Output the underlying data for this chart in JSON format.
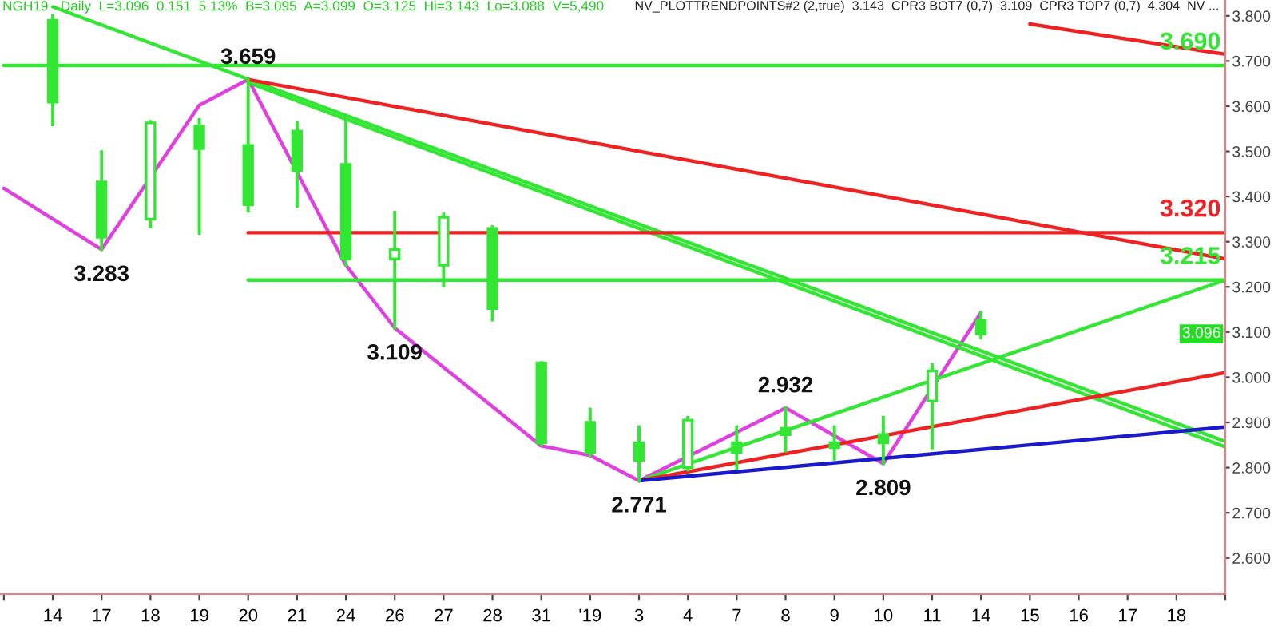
{
  "chart_data": {
    "type": "candlestick",
    "title": "NGH19 - Daily  L=3.096  0.151  5.13%  B=3.095  A=3.099  O=3.125  Hi=3.143  Lo=3.088  V=5,490",
    "subtitle": "NV_PLOTTRENDPOINTS#2 (2,true)  3.143  CPR3 BOT7 (0,7)  3.109  CPR3 TOP7 (0,7)  4.304  NV ...",
    "categories": [
      null,
      "14",
      "17",
      "18",
      "19",
      "20",
      "21",
      "24",
      "26",
      "27",
      "28",
      "31",
      "'19",
      "3",
      "4",
      "7",
      "8",
      "9",
      "10",
      "11",
      "14",
      "15",
      "16",
      "17",
      "18",
      null
    ],
    "color": "#33e633",
    "ohlc": [
      null,
      [
        3.79,
        3.8,
        3.559,
        3.609
      ],
      [
        3.432,
        3.499,
        3.283,
        3.31
      ],
      [
        3.35,
        3.566,
        3.333,
        3.563
      ],
      [
        3.556,
        3.57,
        3.319,
        3.506
      ],
      [
        3.513,
        3.659,
        3.368,
        3.382
      ],
      [
        3.545,
        3.563,
        3.379,
        3.457
      ],
      [
        3.471,
        3.566,
        3.248,
        3.262
      ],
      [
        3.262,
        3.365,
        3.109,
        3.283
      ],
      [
        3.248,
        3.361,
        3.202,
        3.354
      ],
      [
        3.329,
        3.333,
        3.127,
        3.152
      ],
      [
        3.032,
        3.032,
        2.851,
        2.855
      ],
      [
        2.9,
        2.929,
        2.827,
        2.834
      ],
      [
        2.855,
        2.89,
        2.771,
        2.816
      ],
      [
        2.8,
        2.911,
        2.795,
        2.905
      ],
      [
        2.855,
        2.89,
        2.798,
        2.834
      ],
      [
        2.887,
        2.932,
        2.837,
        2.873
      ],
      [
        2.855,
        2.89,
        2.819,
        2.844
      ],
      [
        2.873,
        2.911,
        2.809,
        2.855
      ],
      [
        2.947,
        3.028,
        2.844,
        3.014
      ],
      [
        3.125,
        3.143,
        3.088,
        3.096
      ],
      null,
      null,
      null,
      null,
      null
    ],
    "series": [
      {
        "type": "line",
        "color": "#e040e0",
        "values": [
          3.418,
          null,
          3.283,
          null,
          3.602,
          3.659,
          null,
          3.248,
          3.109,
          null,
          null,
          2.848,
          2.827,
          2.771,
          null,
          null,
          2.932,
          null,
          2.809,
          null,
          3.143,
          null,
          null,
          null,
          null,
          null
        ]
      },
      {
        "type": "line",
        "color": "#33e633",
        "values": [
          3.69,
          null,
          null,
          null,
          null,
          null,
          null,
          null,
          null,
          null,
          null,
          null,
          null,
          null,
          null,
          null,
          null,
          null,
          null,
          null,
          null,
          null,
          null,
          null,
          null,
          3.69
        ]
      },
      {
        "type": "line",
        "color": "#33e633",
        "values": [
          null,
          3.82,
          null,
          null,
          null,
          null,
          null,
          null,
          null,
          null,
          null,
          null,
          null,
          null,
          null,
          null,
          null,
          null,
          null,
          null,
          null,
          null,
          null,
          null,
          null,
          2.858
        ]
      },
      {
        "type": "line",
        "color": "#33e633",
        "values": [
          null,
          null,
          null,
          null,
          null,
          3.652,
          null,
          null,
          null,
          null,
          null,
          null,
          null,
          null,
          null,
          null,
          null,
          null,
          null,
          null,
          null,
          null,
          null,
          null,
          null,
          2.846
        ]
      },
      {
        "type": "line",
        "color": "#ee2222",
        "values": [
          null,
          null,
          null,
          null,
          null,
          3.659,
          null,
          null,
          null,
          null,
          null,
          null,
          null,
          null,
          null,
          null,
          null,
          null,
          null,
          null,
          null,
          null,
          null,
          null,
          null,
          3.262
        ]
      },
      {
        "type": "line",
        "color": "#ee2222",
        "values": [
          null,
          null,
          null,
          null,
          null,
          null,
          null,
          null,
          null,
          null,
          null,
          null,
          null,
          null,
          null,
          null,
          null,
          null,
          null,
          null,
          null,
          3.782,
          null,
          null,
          null,
          3.715
        ]
      },
      {
        "type": "line",
        "color": "#ee2222",
        "values": [
          null,
          null,
          null,
          null,
          null,
          3.32,
          null,
          null,
          null,
          null,
          null,
          null,
          null,
          null,
          null,
          null,
          null,
          null,
          null,
          null,
          null,
          null,
          null,
          null,
          null,
          3.32
        ]
      },
      {
        "type": "line",
        "color": "#33e633",
        "values": [
          null,
          null,
          null,
          null,
          null,
          3.215,
          null,
          null,
          null,
          null,
          null,
          null,
          null,
          null,
          null,
          null,
          null,
          null,
          null,
          null,
          null,
          null,
          null,
          null,
          null,
          3.215
        ]
      },
      {
        "type": "line",
        "color": "#33e633",
        "values": [
          null,
          null,
          null,
          null,
          null,
          null,
          null,
          null,
          null,
          null,
          null,
          null,
          null,
          2.771,
          null,
          null,
          null,
          null,
          null,
          null,
          null,
          null,
          null,
          null,
          null,
          3.215
        ]
      },
      {
        "type": "line",
        "color": "#ee2222",
        "values": [
          null,
          null,
          null,
          null,
          null,
          null,
          null,
          null,
          null,
          null,
          null,
          null,
          null,
          2.771,
          null,
          null,
          null,
          null,
          null,
          null,
          null,
          null,
          null,
          null,
          null,
          3.01
        ]
      },
      {
        "type": "line",
        "color": "#1a1acc",
        "values": [
          null,
          null,
          null,
          null,
          null,
          null,
          null,
          null,
          null,
          null,
          null,
          null,
          null,
          2.771,
          null,
          null,
          null,
          null,
          null,
          null,
          null,
          null,
          null,
          null,
          null,
          2.89
        ]
      }
    ],
    "ylim": [
      2.52,
      3.835
    ],
    "yticks": [
      {
        "value": 2.6,
        "label": "2.600"
      },
      {
        "value": 2.7,
        "label": "2.700"
      },
      {
        "value": 2.8,
        "label": "2.800"
      },
      {
        "value": 2.9,
        "label": "2.900"
      },
      {
        "value": 3.0,
        "label": "3.000"
      },
      {
        "value": 3.1,
        "label": "3.100"
      },
      {
        "value": 3.2,
        "label": "3.200"
      },
      {
        "value": 3.3,
        "label": "3.300"
      },
      {
        "value": 3.4,
        "label": "3.400"
      },
      {
        "value": 3.5,
        "label": "3.500"
      },
      {
        "value": 3.6,
        "label": "3.600"
      },
      {
        "value": 3.7,
        "label": "3.700"
      },
      {
        "value": 3.8,
        "label": "3.800"
      }
    ],
    "annotations": [
      {
        "text": "3.659",
        "y": 3.659
      },
      {
        "text": "3.283",
        "y": 3.283
      },
      {
        "text": "3.109",
        "y": 3.109
      },
      {
        "text": "2.771",
        "y": 2.771
      },
      {
        "text": "2.932",
        "y": 2.932
      },
      {
        "text": "2.809",
        "y": 2.809
      },
      "3.690",
      "3.320",
      "3.215",
      "3.096"
    ],
    "grid": false,
    "legend": false
  }
}
